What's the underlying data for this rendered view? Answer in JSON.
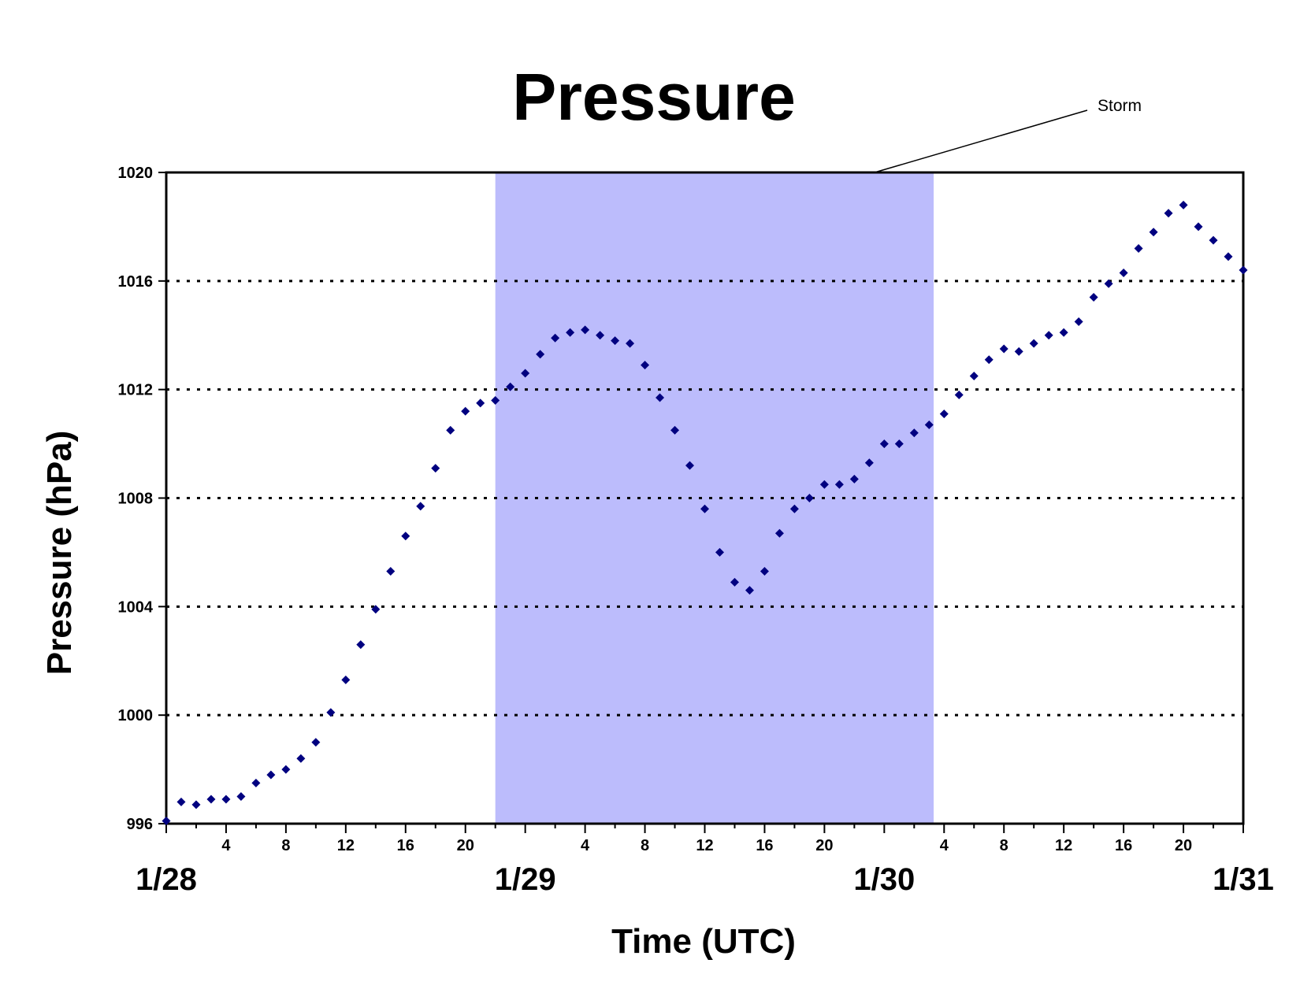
{
  "chart_data": {
    "type": "scatter",
    "title": "Pressure",
    "xlabel": "Time (UTC)",
    "ylabel": "Pressure (hPa)",
    "ylim": [
      996,
      1020
    ],
    "yticks": [
      996,
      1000,
      1004,
      1008,
      1012,
      1016,
      1020
    ],
    "xlim_hours": [
      0,
      72
    ],
    "date_labels": [
      {
        "hour": 0,
        "label": "1/28"
      },
      {
        "hour": 24,
        "label": "1/29"
      },
      {
        "hour": 48,
        "label": "1/30"
      },
      {
        "hour": 72,
        "label": "1/31"
      }
    ],
    "hour_ticks": [
      {
        "hour": 4,
        "label": "4"
      },
      {
        "hour": 8,
        "label": "8"
      },
      {
        "hour": 12,
        "label": "12"
      },
      {
        "hour": 16,
        "label": "16"
      },
      {
        "hour": 20,
        "label": "20"
      },
      {
        "hour": 28,
        "label": "4"
      },
      {
        "hour": 32,
        "label": "8"
      },
      {
        "hour": 36,
        "label": "12"
      },
      {
        "hour": 40,
        "label": "16"
      },
      {
        "hour": 44,
        "label": "20"
      },
      {
        "hour": 52,
        "label": "4"
      },
      {
        "hour": 56,
        "label": "8"
      },
      {
        "hour": 60,
        "label": "12"
      },
      {
        "hour": 64,
        "label": "16"
      },
      {
        "hour": 68,
        "label": "20"
      }
    ],
    "grid": "horizontal dotted",
    "marker_color": "#000080",
    "storm_band": {
      "start_hour": 22,
      "end_hour": 51.3,
      "color": "#bcbcfc",
      "label": "Storm"
    },
    "x": [
      0,
      1,
      2,
      3,
      4,
      5,
      6,
      7,
      8,
      9,
      10,
      11,
      12,
      13,
      14,
      15,
      16,
      17,
      18,
      19,
      20,
      21,
      22,
      23,
      24,
      25,
      26,
      27,
      28,
      29,
      30,
      31,
      32,
      33,
      34,
      35,
      36,
      37,
      38,
      39,
      40,
      41,
      42,
      43,
      44,
      45,
      46,
      47,
      48,
      49,
      50,
      51,
      52,
      53,
      54,
      55,
      56,
      57,
      58,
      59,
      60,
      61,
      62,
      63,
      64,
      65,
      66,
      67,
      68,
      69,
      70,
      71,
      72
    ],
    "y": [
      996.1,
      996.8,
      996.7,
      996.9,
      996.9,
      997.0,
      997.5,
      997.8,
      998.0,
      998.4,
      999.0,
      1000.1,
      1001.3,
      1002.6,
      1003.9,
      1005.3,
      1006.6,
      1007.7,
      1009.1,
      1010.5,
      1011.2,
      1011.5,
      1011.6,
      1012.1,
      1012.6,
      1013.3,
      1013.9,
      1014.1,
      1014.2,
      1014.0,
      1013.8,
      1013.7,
      1012.9,
      1011.7,
      1010.5,
      1009.2,
      1007.6,
      1006.0,
      1004.9,
      1004.6,
      1005.3,
      1006.7,
      1007.6,
      1008.0,
      1008.5,
      1008.5,
      1008.7,
      1009.3,
      1010.0,
      1010.0,
      1010.4,
      1010.7,
      1011.1,
      1011.8,
      1012.5,
      1013.1,
      1013.5,
      1013.4,
      1013.7,
      1014.0,
      1014.1,
      1014.5,
      1015.4,
      1015.9,
      1016.3,
      1017.2,
      1017.8,
      1018.5,
      1018.8,
      1018.0,
      1017.5,
      1016.9,
      1016.4
    ]
  }
}
